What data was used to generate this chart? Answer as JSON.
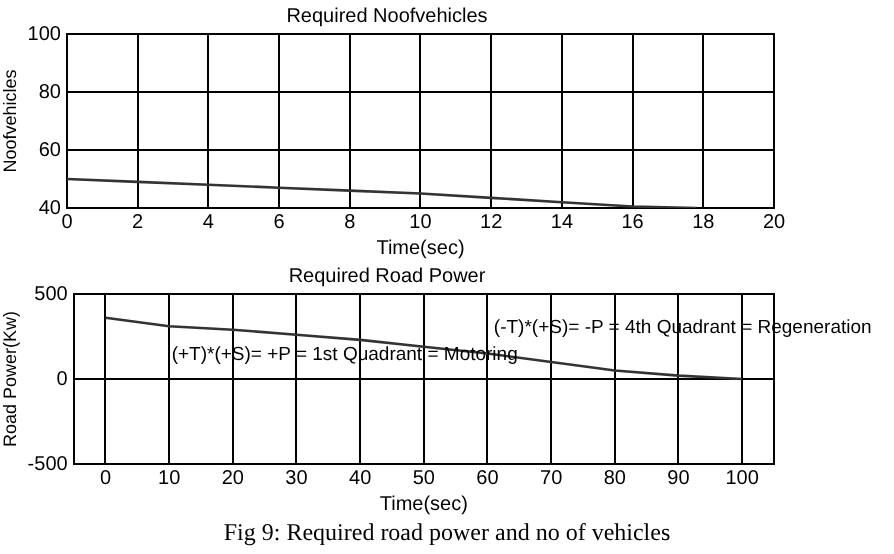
{
  "chart_data": [
    {
      "type": "line",
      "title": "Required Noofvehicles",
      "xlabel": "Time(sec)",
      "ylabel": "Noofvehicles",
      "x": [
        0,
        2,
        4,
        6,
        8,
        10,
        12,
        14,
        16,
        17.8
      ],
      "values": [
        50,
        49,
        48,
        47,
        46,
        45,
        43.5,
        42,
        40.5,
        40
      ],
      "color": "#333333",
      "xlim": [
        0,
        20
      ],
      "xticks": [
        0,
        2,
        4,
        6,
        8,
        10,
        12,
        14,
        16,
        18,
        20
      ],
      "ylim": [
        40,
        100
      ],
      "yticks": [
        40,
        60,
        80,
        100
      ],
      "grid": true
    },
    {
      "type": "line",
      "title": "Required Road Power",
      "xlabel": "Time(sec)",
      "ylabel": "Road Power(Kw)",
      "x": [
        0,
        10,
        20,
        30,
        40,
        50,
        60,
        70,
        80,
        90,
        100
      ],
      "values": [
        360,
        310,
        290,
        260,
        230,
        190,
        150,
        100,
        50,
        20,
        0
      ],
      "color": "#333333",
      "xlim": [
        -5,
        105
      ],
      "xticks": [
        0,
        10,
        20,
        30,
        40,
        50,
        60,
        70,
        80,
        90,
        100
      ],
      "ylim": [
        -500,
        500
      ],
      "yticks": [
        -500,
        0,
        500
      ],
      "grid": true,
      "annotations": [
        "(-T)*(+S)= -P = 4th Quadrant = Regeneration",
        "(+T)*(+S)= +P = 1st Quadrant = Motoring",
        "Fig 9: Required road power and no of vehicles"
      ]
    }
  ]
}
